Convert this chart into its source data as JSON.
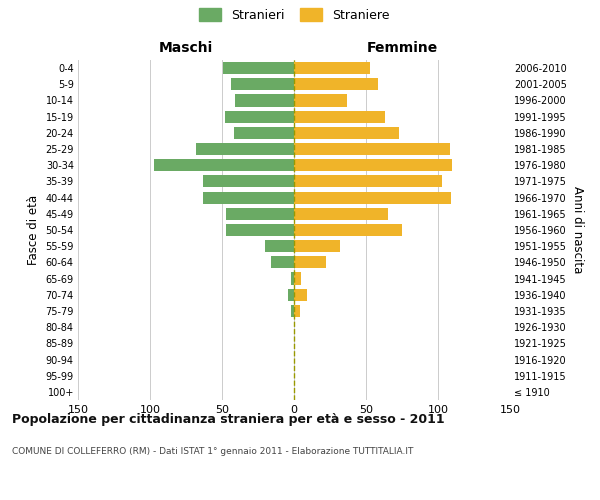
{
  "age_groups": [
    "100+",
    "95-99",
    "90-94",
    "85-89",
    "80-84",
    "75-79",
    "70-74",
    "65-69",
    "60-64",
    "55-59",
    "50-54",
    "45-49",
    "40-44",
    "35-39",
    "30-34",
    "25-29",
    "20-24",
    "15-19",
    "10-14",
    "5-9",
    "0-4"
  ],
  "birth_years": [
    "≤ 1910",
    "1911-1915",
    "1916-1920",
    "1921-1925",
    "1926-1930",
    "1931-1935",
    "1936-1940",
    "1941-1945",
    "1946-1950",
    "1951-1955",
    "1956-1960",
    "1961-1965",
    "1966-1970",
    "1971-1975",
    "1976-1980",
    "1981-1985",
    "1986-1990",
    "1991-1995",
    "1996-2000",
    "2001-2005",
    "2006-2010"
  ],
  "maschi": [
    0,
    0,
    0,
    0,
    0,
    2,
    4,
    2,
    16,
    20,
    47,
    47,
    63,
    63,
    97,
    68,
    42,
    48,
    41,
    44,
    49
  ],
  "femmine": [
    0,
    0,
    0,
    0,
    0,
    4,
    9,
    5,
    22,
    32,
    75,
    65,
    109,
    103,
    110,
    108,
    73,
    63,
    37,
    58,
    53
  ],
  "color_maschi": "#6aaa64",
  "color_femmine": "#f0b429",
  "background_color": "#ffffff",
  "grid_color": "#cccccc",
  "title": "Popolazione per cittadinanza straniera per età e sesso - 2011",
  "subtitle": "COMUNE DI COLLEFERRO (RM) - Dati ISTAT 1° gennaio 2011 - Elaborazione TUTTITALIA.IT",
  "xlabel_left": "Maschi",
  "xlabel_right": "Femmine",
  "ylabel_left": "Fasce di età",
  "ylabel_right": "Anni di nascita",
  "legend_maschi": "Stranieri",
  "legend_femmine": "Straniere",
  "xlim": 150,
  "bar_height": 0.75,
  "dashed_line_color": "#999900"
}
